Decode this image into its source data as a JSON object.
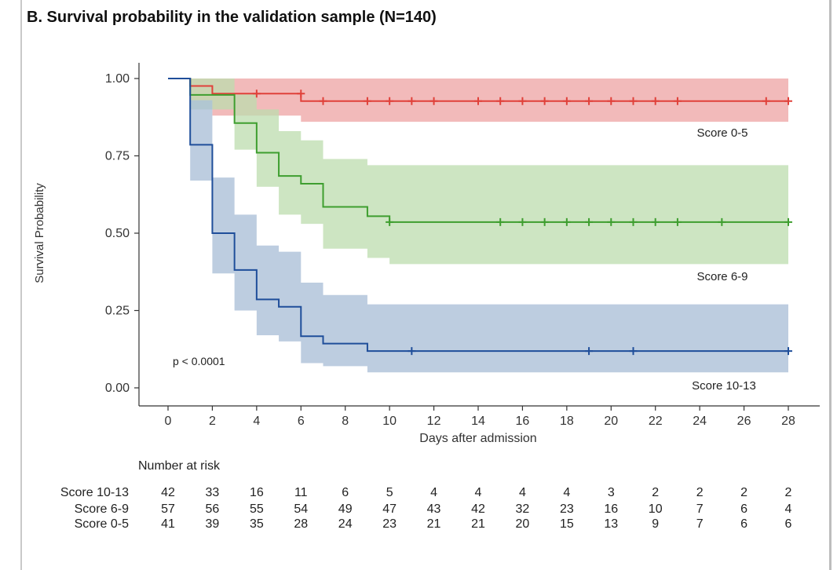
{
  "title": "B. Survival probability in the validation sample (N=140)",
  "chart_data": {
    "type": "line",
    "title": "B. Survival probability in the validation sample (N=140)",
    "xlabel": "Days after admission",
    "ylabel": "Survival Probability",
    "xlim": [
      0,
      28
    ],
    "ylim": [
      0,
      1
    ],
    "x_ticks": [
      0,
      2,
      4,
      6,
      8,
      10,
      12,
      14,
      16,
      18,
      20,
      22,
      24,
      26,
      28
    ],
    "y_ticks": [
      0,
      0.25,
      0.5,
      0.75,
      1
    ],
    "y_tick_labels": [
      "0.00",
      "0.25",
      "0.50",
      "0.75",
      "1.00"
    ],
    "grid": false,
    "annotation": "p < 0.0001",
    "series": [
      {
        "name": "Score 0-5",
        "color": "#e0413a",
        "band_color": "#eea3a3",
        "step_x": [
          0,
          1,
          2,
          6,
          7,
          28
        ],
        "step_y": [
          1.0,
          0.976,
          0.951,
          0.927,
          0.927,
          0.927
        ],
        "band_lower": [
          1.0,
          0.93,
          0.88,
          0.86,
          0.86,
          0.86
        ],
        "band_upper": [
          1.0,
          1.0,
          1.0,
          1.0,
          1.0,
          1.0
        ],
        "censor_x": [
          4,
          6,
          7,
          9,
          10,
          11,
          12,
          14,
          15,
          16,
          17,
          18,
          19,
          20,
          21,
          22,
          23,
          27,
          28
        ],
        "censor_y": [
          0.951,
          0.951,
          0.927,
          0.927,
          0.927,
          0.927,
          0.927,
          0.927,
          0.927,
          0.927,
          0.927,
          0.927,
          0.927,
          0.927,
          0.927,
          0.927,
          0.927,
          0.927,
          0.927
        ]
      },
      {
        "name": "Score 6-9",
        "color": "#3e9e2f",
        "band_color": "#bcdcae",
        "step_x": [
          0,
          1,
          3,
          4,
          5,
          6,
          7,
          9,
          10,
          28
        ],
        "step_y": [
          1.0,
          0.947,
          0.856,
          0.76,
          0.685,
          0.66,
          0.585,
          0.555,
          0.536,
          0.536
        ],
        "band_lower": [
          1.0,
          0.9,
          0.77,
          0.65,
          0.56,
          0.53,
          0.45,
          0.42,
          0.4,
          0.4
        ],
        "band_upper": [
          1.0,
          1.0,
          0.95,
          0.9,
          0.83,
          0.8,
          0.74,
          0.72,
          0.72,
          0.72
        ],
        "censor_x": [
          10,
          15,
          16,
          17,
          18,
          19,
          20,
          21,
          22,
          23,
          25,
          28
        ],
        "censor_y": [
          0.536,
          0.536,
          0.536,
          0.536,
          0.536,
          0.536,
          0.536,
          0.536,
          0.536,
          0.536,
          0.536,
          0.536
        ]
      },
      {
        "name": "Score 10-13",
        "color": "#1f4e9a",
        "band_color": "#a7bcd6",
        "step_x": [
          0,
          1,
          2,
          3,
          4,
          5,
          6,
          7,
          9,
          28
        ],
        "step_y": [
          1.0,
          0.786,
          0.5,
          0.381,
          0.286,
          0.262,
          0.167,
          0.143,
          0.119,
          0.119
        ],
        "band_lower": [
          1.0,
          0.67,
          0.37,
          0.25,
          0.17,
          0.15,
          0.08,
          0.07,
          0.05,
          0.05
        ],
        "band_upper": [
          1.0,
          0.93,
          0.68,
          0.56,
          0.46,
          0.44,
          0.34,
          0.3,
          0.27,
          0.27
        ],
        "censor_x": [
          11,
          19,
          21,
          28
        ],
        "censor_y": [
          0.119,
          0.119,
          0.119,
          0.119
        ]
      }
    ]
  },
  "risk_table": {
    "title": "Number at risk",
    "days": [
      0,
      2,
      4,
      6,
      8,
      10,
      12,
      14,
      16,
      18,
      20,
      22,
      24,
      26,
      28
    ],
    "rows": [
      {
        "label": "Score 10-13",
        "values": [
          42,
          33,
          16,
          11,
          6,
          5,
          4,
          4,
          4,
          4,
          3,
          2,
          2,
          2,
          2
        ]
      },
      {
        "label": "Score 6-9",
        "values": [
          57,
          56,
          55,
          54,
          49,
          47,
          43,
          42,
          32,
          23,
          16,
          10,
          7,
          6,
          4
        ]
      },
      {
        "label": "Score 0-5",
        "values": [
          41,
          39,
          35,
          28,
          24,
          23,
          21,
          21,
          20,
          15,
          13,
          9,
          7,
          6,
          6
        ]
      }
    ]
  }
}
